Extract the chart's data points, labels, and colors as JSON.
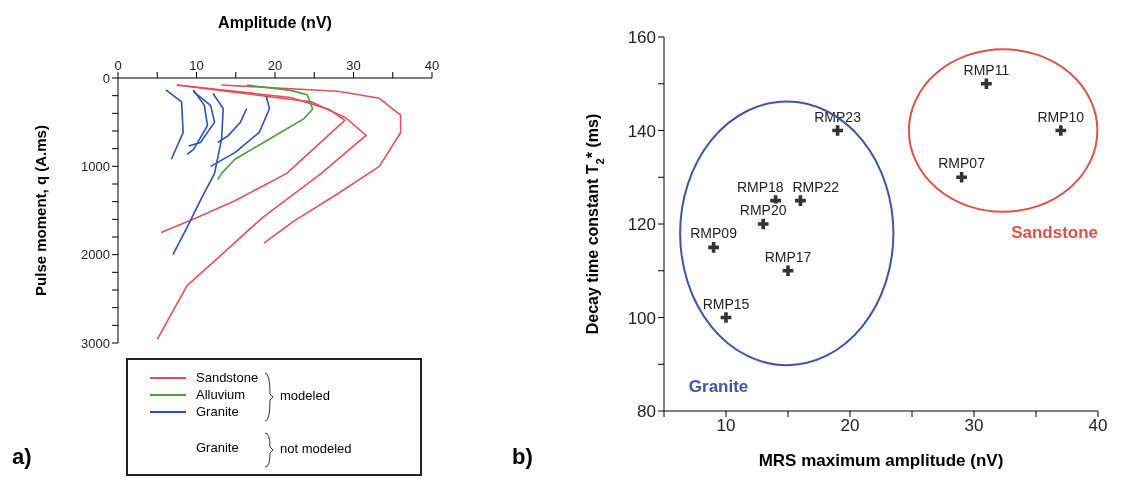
{
  "chart_data": [
    {
      "type": "line",
      "xlabel": "Amplitude (nV)",
      "ylabel": "Pulse moment, q (A.ms)",
      "xlim": [
        0,
        40
      ],
      "xticks": [
        0,
        {
          "value": 5,
          "label": null
        },
        10,
        {
          "value": 15,
          "label": null
        },
        20,
        {
          "value": 25,
          "label": null
        },
        30,
        {
          "value": 35,
          "label": null
        },
        40
      ],
      "ylim": [
        3000,
        0
      ],
      "yticks": [
        0,
        {
          "value": 200,
          "label": null
        },
        {
          "value": 400,
          "label": null
        },
        {
          "value": 600,
          "label": null
        },
        {
          "value": 800,
          "label": null
        },
        1000,
        {
          "value": 1200,
          "label": null
        },
        {
          "value": 1400,
          "label": null
        },
        {
          "value": 1600,
          "label": null
        },
        {
          "value": 1800,
          "label": null
        },
        2000,
        {
          "value": 2200,
          "label": null
        },
        {
          "value": 2400,
          "label": null
        },
        {
          "value": 2600,
          "label": null
        },
        {
          "value": 2800,
          "label": null
        },
        3000
      ],
      "legend": "bottom",
      "annotations": [
        "modeled",
        "Granite",
        "not modeled",
        "a)"
      ],
      "series": [
        {
          "name": "Sandstone",
          "color": "#e0505a",
          "x": [
            7.5,
            22,
            27,
            28.9,
            26.3,
            21.5,
            14.9,
            10.1,
            5.5
          ],
          "values": [
            80,
            220,
            360,
            480,
            690,
            1080,
            1390,
            1580,
            1750
          ]
        },
        {
          "color": "#e0505a",
          "x": [
            7.5,
            24.6,
            29,
            31.6,
            25.9,
            18.4,
            12.7,
            8.8,
            5
          ],
          "values": [
            80,
            270,
            450,
            650,
            1080,
            1580,
            2040,
            2350,
            2960
          ]
        },
        {
          "color": "#e0505a",
          "x": [
            13.2,
            28,
            33.3,
            36,
            36,
            33.3,
            28,
            22.4,
            18.6
          ],
          "values": [
            80,
            150,
            230,
            420,
            620,
            1000,
            1310,
            1620,
            1870
          ]
        },
        {
          "name": "Alluvium",
          "color": "#4c9a3c",
          "x": [
            16.4,
            22,
            24.1,
            24.8,
            23.7,
            19.3,
            14.9,
            13.2,
            12.7
          ],
          "values": [
            80,
            140,
            190,
            350,
            460,
            690,
            920,
            1080,
            1150
          ]
        },
        {
          "name": "Granite",
          "color": "#3050b0",
          "x": [
            6.1,
            8.1,
            8.3,
            6.8
          ],
          "values": [
            135,
            270,
            615,
            920
          ]
        },
        {
          "color": "#3050b0",
          "x": [
            9.6,
            11,
            11.4,
            9.6,
            8.8
          ],
          "values": [
            135,
            310,
            540,
            810,
            865
          ]
        },
        {
          "color": "#3050b0",
          "x": [
            9.6,
            11.8,
            12.3,
            10.5,
            9
          ],
          "values": [
            155,
            310,
            500,
            730,
            770
          ]
        },
        {
          "color": "#3050b0",
          "x": [
            12.1,
            13.4,
            13.2,
            12.3,
            10.5,
            8.8,
            7
          ],
          "values": [
            175,
            345,
            690,
            1080,
            1385,
            1690,
            2000
          ]
        },
        {
          "color": "#3050b0",
          "x": [
            16.4,
            15.6,
            14,
            12.7
          ],
          "values": [
            345,
            500,
            655,
            730
          ]
        },
        {
          "color": "#3050b0",
          "x": [
            18.9,
            19.3,
            18,
            14.9,
            11.8
          ],
          "values": [
            210,
            345,
            615,
            845,
            1000
          ]
        }
      ]
    },
    {
      "type": "scatter",
      "xlabel": "MRS maximum amplitude (nV)",
      "ylabel": "Decay time constant T$_{2}$* (ms)",
      "marker": "cross",
      "xlim": [
        5,
        40
      ],
      "xticks": [
        {
          "value": 5,
          "label": null
        },
        10,
        {
          "value": 15,
          "label": null
        },
        20,
        {
          "value": 25,
          "label": null
        },
        30,
        {
          "value": 35,
          "label": null
        },
        40
      ],
      "ylim": [
        80,
        160
      ],
      "yticks": [
        80,
        {
          "value": 90,
          "label": null
        },
        100,
        {
          "value": 110,
          "label": null
        },
        120,
        {
          "value": 130,
          "label": null
        },
        140,
        {
          "value": 150,
          "label": null
        },
        160
      ],
      "series": [
        {
          "color": "#333333",
          "x": [
            31,
            37,
            29,
            19,
            14,
            16,
            13,
            9,
            15,
            10
          ],
          "values": [
            150,
            140,
            130,
            140,
            125,
            125,
            120,
            115,
            110,
            100
          ]
        }
      ],
      "annotations": [
        {
          "text": "RMP11",
          "x": 31,
          "y": 150
        },
        {
          "text": "RMP10",
          "x": 37,
          "y": 140
        },
        {
          "text": "RMP07",
          "x": 29,
          "y": 130
        },
        {
          "text": "RMP23",
          "x": 19,
          "y": 140
        },
        {
          "text": "RMP18",
          "x": 14,
          "y": 125
        },
        {
          "text": "RMP22",
          "x": 16,
          "y": 125
        },
        {
          "text": "RMP20",
          "x": 13,
          "y": 120
        },
        {
          "text": "RMP09",
          "x": 9,
          "y": 115
        },
        {
          "text": "RMP17",
          "x": 15,
          "y": 110
        },
        {
          "text": "RMP15",
          "x": 10,
          "y": 100
        },
        "Granite",
        "Sandstone",
        "b)"
      ]
    }
  ]
}
